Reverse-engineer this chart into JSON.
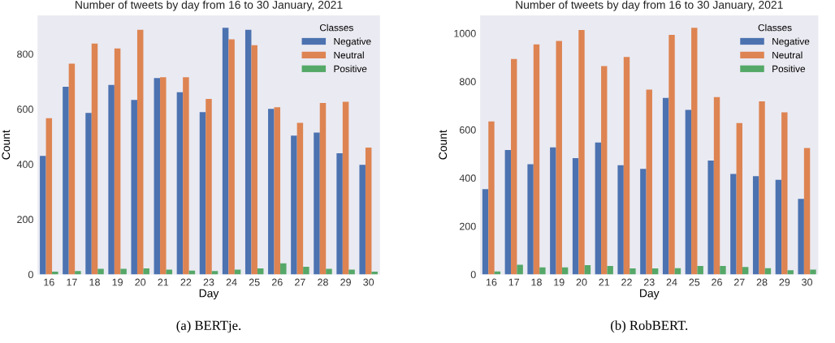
{
  "chart_data": [
    {
      "type": "bar",
      "title": "Number of tweets by day from 16 to 30 January, 2021",
      "xlabel": "Day",
      "ylabel": "Count",
      "legend_title": "Classes",
      "legend": "top right",
      "grid": false,
      "categories": [
        "16",
        "17",
        "18",
        "19",
        "20",
        "21",
        "22",
        "23",
        "24",
        "25",
        "26",
        "27",
        "28",
        "29",
        "30"
      ],
      "ylim": [
        0,
        940
      ],
      "yticks": [
        0,
        200,
        400,
        600,
        800
      ],
      "annotations": [
        "(a) BERTje."
      ],
      "series": [
        {
          "name": "Negative",
          "color": "#4c72b0",
          "values": [
            430,
            681,
            586,
            688,
            633,
            713,
            661,
            589,
            895,
            888,
            601,
            504,
            515,
            440,
            398
          ]
        },
        {
          "name": "Neutral",
          "color": "#dd8452",
          "values": [
            567,
            765,
            838,
            820,
            888,
            716,
            716,
            637,
            853,
            832,
            607,
            550,
            622,
            627,
            460
          ]
        },
        {
          "name": "Positive",
          "color": "#55a868",
          "values": [
            10,
            12,
            20,
            20,
            22,
            17,
            14,
            12,
            17,
            22,
            40,
            28,
            20,
            17,
            10
          ]
        }
      ]
    },
    {
      "type": "bar",
      "title": "Number of tweets by day from 16 to 30 January, 2021",
      "xlabel": "Day",
      "ylabel": "Count",
      "legend_title": "Classes",
      "legend": "top right",
      "grid": false,
      "categories": [
        "16",
        "17",
        "18",
        "19",
        "20",
        "21",
        "22",
        "23",
        "24",
        "25",
        "26",
        "27",
        "28",
        "29",
        "30"
      ],
      "ylim": [
        0,
        1074
      ],
      "yticks": [
        0,
        200,
        400,
        600,
        800,
        1000
      ],
      "annotations": [
        "(b) RobBERT."
      ],
      "series": [
        {
          "name": "Negative",
          "color": "#4c72b0",
          "values": [
            354,
            516,
            457,
            527,
            482,
            547,
            453,
            438,
            732,
            682,
            472,
            417,
            407,
            392,
            313
          ]
        },
        {
          "name": "Neutral",
          "color": "#dd8452",
          "values": [
            634,
            893,
            954,
            968,
            1014,
            864,
            902,
            766,
            993,
            1023,
            735,
            628,
            718,
            672,
            524
          ]
        },
        {
          "name": "Positive",
          "color": "#55a868",
          "values": [
            12,
            40,
            29,
            29,
            38,
            35,
            25,
            25,
            26,
            35,
            35,
            31,
            26,
            17,
            20
          ]
        }
      ]
    }
  ]
}
